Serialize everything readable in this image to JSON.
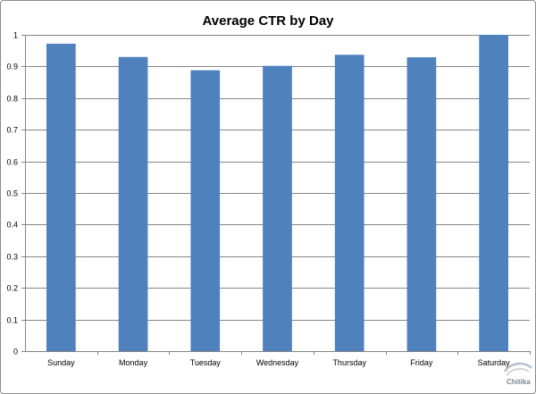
{
  "chart_data": {
    "type": "bar",
    "title": "Average CTR by Day",
    "xlabel": "",
    "ylabel": "",
    "categories": [
      "Sunday",
      "Monday",
      "Tuesday",
      "Wednesday",
      "Thursday",
      "Friday",
      "Saturday"
    ],
    "values": [
      0.972,
      0.93,
      0.888,
      0.902,
      0.937,
      0.929,
      1.0
    ],
    "ylim": [
      0,
      1
    ],
    "yticks": [
      "0",
      "0.1",
      "0.2",
      "0.3",
      "0.4",
      "0.5",
      "0.6",
      "0.7",
      "0.8",
      "0.9",
      "1"
    ],
    "grid": true,
    "legend": "none",
    "bar_color": "#4f81bd"
  },
  "watermark": {
    "text": "Chitika",
    "icon": "chitika-logo-icon"
  }
}
